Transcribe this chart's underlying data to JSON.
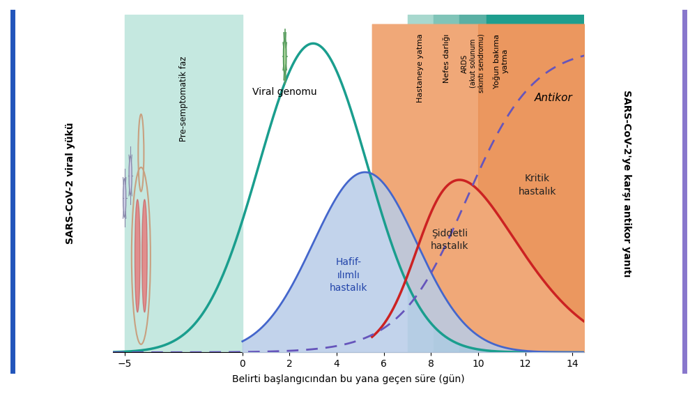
{
  "title_left": "SARS-CoV-2 viral yükü",
  "title_right": "SARS-CoV-2'ye karşı antikor yanıtı",
  "xlabel": "Belirti başlangıcından bu yana geçen süre (gün)",
  "xmin": -5.5,
  "xmax": 14.5,
  "ymin": 0,
  "ymax": 1.05,
  "xticks": [
    -5,
    0,
    2,
    4,
    6,
    8,
    10,
    12,
    14
  ],
  "pre_sempto_color": "#c5e8e0",
  "hosp_color": "#a8d8ce",
  "nefes_color": "#80c4b8",
  "ards_color": "#5ab0a4",
  "yogun_color": "#1e9e8e",
  "antikor_label": "Antikor",
  "hafif_label": "Hafif-\nılımlı\nhastalık",
  "siddetli_label": "Şiddetli\nhastalık",
  "kritik_label": "Kritik\nhastalık",
  "viral_label": "Viral genomu",
  "pre_label": "Pre-semptomatik faz",
  "hosp_label": "Hastaneye yatma",
  "nefes_darligi_label": "Nefes darlığı",
  "ards_label": "ARDS\n(akut solunum\nsıkıntı sendromu)",
  "yogun_label": "Yoğun bakıma\nyatma",
  "viral_color": "#1a9e8e",
  "blue_fill_color": "#b8cce8",
  "blue_line_color": "#4466cc",
  "orange_fill_color": "#f0a878",
  "orange_dark_color": "#e88848",
  "dashed_color": "#6655bb",
  "red_line_color": "#cc2222",
  "bg_color": "#ffffff",
  "left_bar_color": "#2255bb",
  "right_bar_color": "#8877cc"
}
